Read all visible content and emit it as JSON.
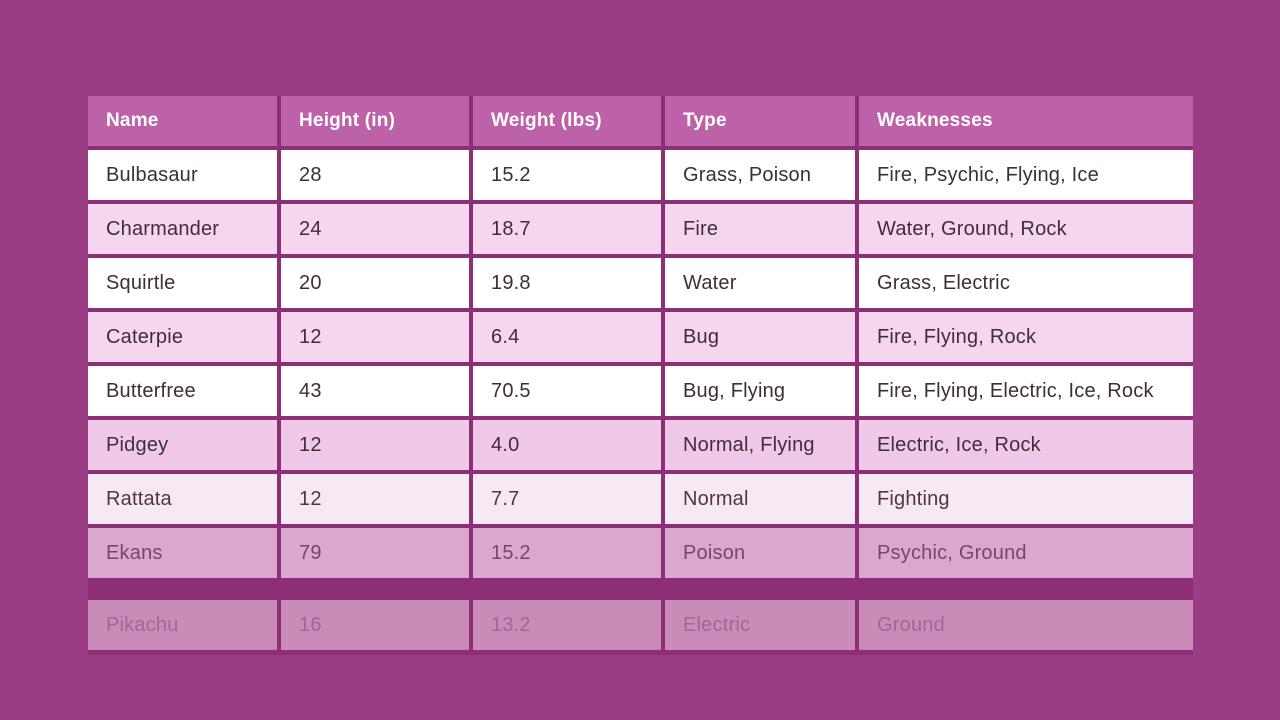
{
  "page": {
    "background_color": "#9a3d84",
    "grid_color": "#8c2f77",
    "header_bg_color": "#bd61a9",
    "header_text_color": "#ffffff",
    "row_white_color": "#ffffff",
    "row_pink_color": "#f5d6ee",
    "body_text_color": "#3e2d3b"
  },
  "table": {
    "columns": [
      "Name",
      "Height (in)",
      "Weight (lbs)",
      "Type",
      "Weaknesses"
    ],
    "rows": [
      {
        "name": "Bulbasaur",
        "height_in": "28",
        "weight_lbs": "15.2",
        "type": "Grass, Poison",
        "weaknesses": "Fire, Psychic, Flying, Ice",
        "style": "white",
        "gap_before": 4
      },
      {
        "name": "Charmander",
        "height_in": "24",
        "weight_lbs": "18.7",
        "type": "Fire",
        "weaknesses": "Water, Ground, Rock",
        "style": "pink",
        "gap_before": 4
      },
      {
        "name": "Squirtle",
        "height_in": "20",
        "weight_lbs": "19.8",
        "type": "Water",
        "weaknesses": "Grass, Electric",
        "style": "white",
        "gap_before": 4
      },
      {
        "name": "Caterpie",
        "height_in": "12",
        "weight_lbs": "6.4",
        "type": "Bug",
        "weaknesses": "Fire, Flying, Rock",
        "style": "pink",
        "gap_before": 4
      },
      {
        "name": "Butterfree",
        "height_in": "43",
        "weight_lbs": "70.5",
        "type": "Bug, Flying",
        "weaknesses": "Fire, Flying, Electric, Ice, Rock",
        "style": "white",
        "gap_before": 4
      },
      {
        "name": "Pidgey",
        "height_in": "12",
        "weight_lbs": "4.0",
        "type": "Normal, Flying",
        "weaknesses": "Electric, Ice, Rock",
        "style": "pink-deep",
        "gap_before": 4
      },
      {
        "name": "Rattata",
        "height_in": "12",
        "weight_lbs": "7.7",
        "type": "Normal",
        "weaknesses": "Fighting",
        "style": "faded-light",
        "gap_before": 4
      },
      {
        "name": "Ekans",
        "height_in": "79",
        "weight_lbs": "15.2",
        "type": "Poison",
        "weaknesses": "Psychic, Ground",
        "style": "faded-mid",
        "gap_before": 4
      },
      {
        "name": "Pikachu",
        "height_in": "16",
        "weight_lbs": "13.2",
        "type": "Electric",
        "weaknesses": "Ground",
        "style": "faded-strong",
        "gap_before": 22
      }
    ]
  },
  "chart_data": {
    "type": "table",
    "title": "",
    "columns": [
      "Name",
      "Height (in)",
      "Weight (lbs)",
      "Type",
      "Weaknesses"
    ],
    "rows": [
      [
        "Bulbasaur",
        28,
        15.2,
        "Grass, Poison",
        "Fire, Psychic, Flying, Ice"
      ],
      [
        "Charmander",
        24,
        18.7,
        "Fire",
        "Water, Ground, Rock"
      ],
      [
        "Squirtle",
        20,
        19.8,
        "Water",
        "Grass, Electric"
      ],
      [
        "Caterpie",
        12,
        6.4,
        "Bug",
        "Fire, Flying, Rock"
      ],
      [
        "Butterfree",
        43,
        70.5,
        "Bug, Flying",
        "Fire, Flying, Electric, Ice, Rock"
      ],
      [
        "Pidgey",
        12,
        4.0,
        "Normal, Flying",
        "Electric, Ice, Rock"
      ],
      [
        "Rattata",
        12,
        7.7,
        "Normal",
        "Fighting"
      ],
      [
        "Ekans",
        79,
        15.2,
        "Poison",
        "Psychic, Ground"
      ],
      [
        "Pikachu",
        16,
        13.2,
        "Electric",
        "Ground"
      ]
    ],
    "layout": {
      "header_style": "bold white on pink #bd61a9",
      "zebra_striping": "white / light pink #f5d6ee alternating",
      "note": "bottom three rows progressively faded toward background; extra gap before last row (Pikachu)"
    }
  }
}
